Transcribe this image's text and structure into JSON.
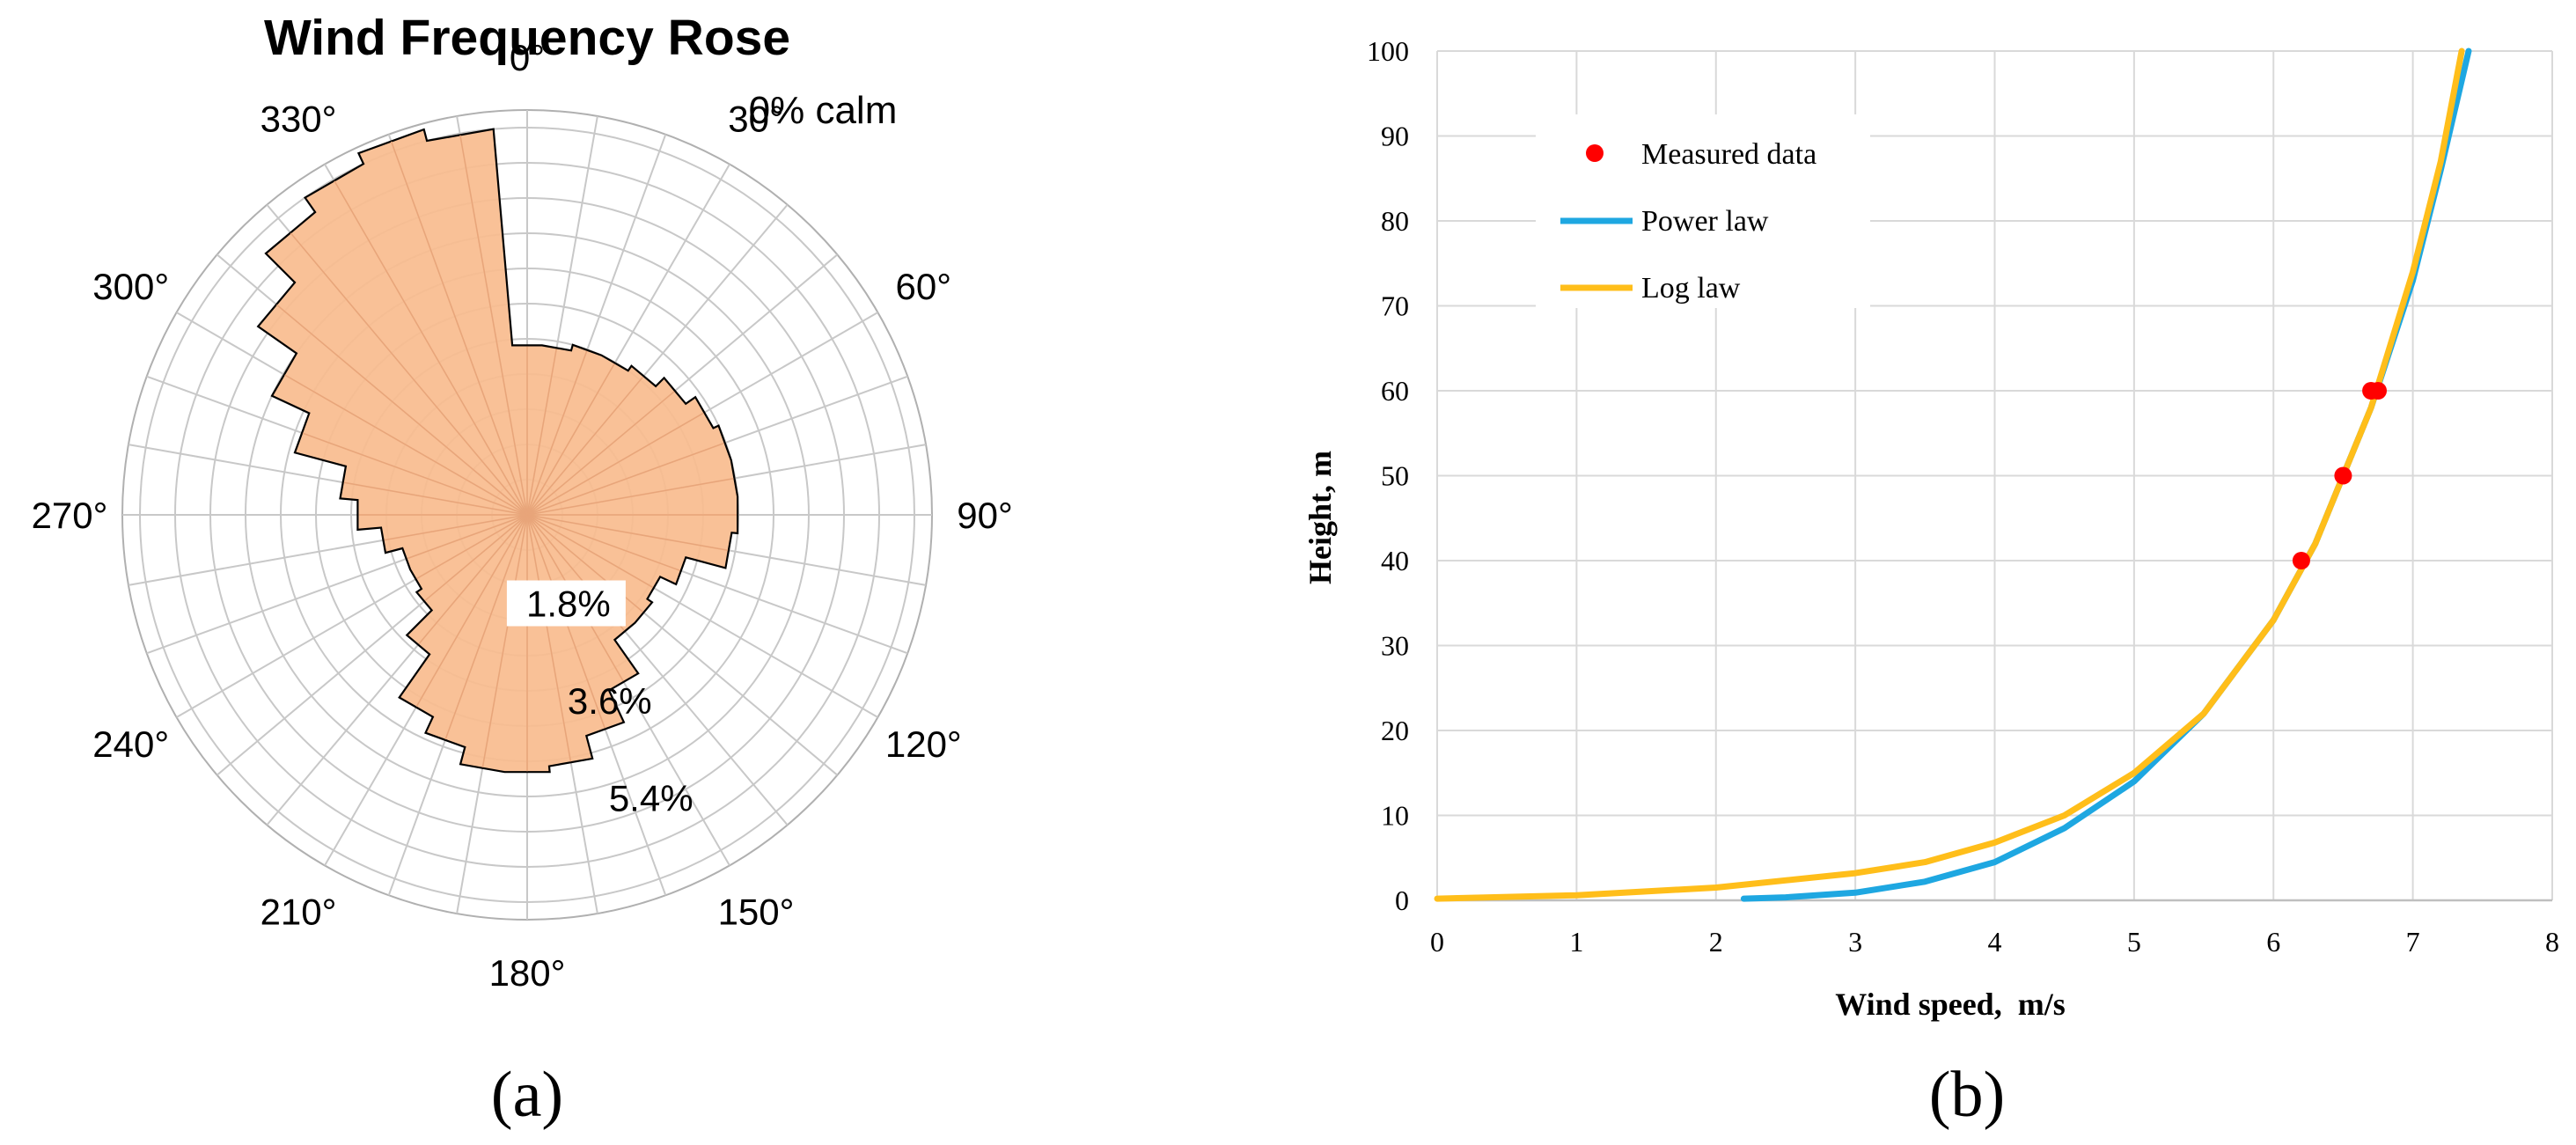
{
  "chart_data": [
    {
      "type": "polar-area",
      "title": "Wind Frequency Rose",
      "calm_label": "0% calm",
      "panel_label": "(a)",
      "angle_labels": [
        "0°",
        "30°",
        "60°",
        "90°",
        "120°",
        "150°",
        "180°",
        "210°",
        "240°",
        "270°",
        "300°",
        "330°"
      ],
      "radial_labels": [
        "1.8%",
        "3.6%",
        "5.4%"
      ],
      "radial_max_percent": 6.9,
      "colors": {
        "fill": "#f8bc8e",
        "outline": "#000000",
        "grid": "#c8c8c8"
      },
      "directions_deg": [
        0,
        10,
        20,
        30,
        40,
        50,
        60,
        70,
        80,
        90,
        100,
        110,
        120,
        130,
        140,
        150,
        160,
        170,
        180,
        190,
        200,
        210,
        220,
        230,
        240,
        250,
        260,
        270,
        280,
        290,
        300,
        310,
        320,
        330,
        340,
        350
      ],
      "frequencies_percent": [
        2.9,
        2.9,
        3.0,
        3.0,
        3.1,
        3.3,
        3.5,
        3.6,
        3.6,
        3.6,
        3.5,
        2.8,
        2.5,
        2.6,
        2.6,
        3.3,
        3.9,
        4.3,
        4.4,
        4.4,
        4.1,
        3.8,
        2.9,
        2.3,
        2.2,
        2.2,
        2.5,
        2.9,
        3.2,
        4.1,
        4.8,
        5.6,
        6.3,
        6.6,
        6.8,
        6.6
      ]
    },
    {
      "type": "line",
      "panel_label": "(b)",
      "xlabel": "Wind speed,  m/s",
      "ylabel": "Height, m",
      "xlim": [
        0,
        8
      ],
      "ylim": [
        0,
        100
      ],
      "xticks": [
        0,
        1,
        2,
        3,
        4,
        5,
        6,
        7,
        8
      ],
      "yticks": [
        0,
        10,
        20,
        30,
        40,
        50,
        60,
        70,
        80,
        90,
        100
      ],
      "colors": {
        "measured": "#ff0000",
        "power": "#1ea7e1",
        "log": "#ffbe1a",
        "grid": "#d9d9d9"
      },
      "legend": {
        "position": "top-left",
        "entries": [
          {
            "key": "measured",
            "label": "Measured data"
          },
          {
            "key": "power",
            "label": "Power law"
          },
          {
            "key": "log",
            "label": "Log law"
          }
        ]
      },
      "series": [
        {
          "name": "Measured data",
          "key": "measured",
          "style": "points",
          "points": [
            [
              6.2,
              40
            ],
            [
              6.5,
              50
            ],
            [
              6.7,
              60
            ],
            [
              6.75,
              60
            ]
          ]
        },
        {
          "name": "Power law",
          "key": "power",
          "style": "line",
          "points": [
            [
              2.2,
              0.2
            ],
            [
              2.5,
              0.35
            ],
            [
              3.0,
              0.9
            ],
            [
              3.5,
              2.2
            ],
            [
              4.0,
              4.5
            ],
            [
              4.5,
              8.5
            ],
            [
              5.0,
              14
            ],
            [
              5.5,
              22
            ],
            [
              6.0,
              33
            ],
            [
              6.3,
              42
            ],
            [
              6.5,
              50
            ],
            [
              6.7,
              58
            ],
            [
              7.0,
              73
            ],
            [
              7.2,
              86
            ],
            [
              7.4,
              100
            ]
          ]
        },
        {
          "name": "Log law",
          "key": "log",
          "style": "line",
          "points": [
            [
              0,
              0.2
            ],
            [
              1,
              0.6
            ],
            [
              2,
              1.5
            ],
            [
              3,
              3.2
            ],
            [
              3.5,
              4.5
            ],
            [
              4.0,
              6.8
            ],
            [
              4.5,
              10
            ],
            [
              5.0,
              15
            ],
            [
              5.5,
              22
            ],
            [
              6.0,
              33
            ],
            [
              6.3,
              42
            ],
            [
              6.5,
              50
            ],
            [
              6.7,
              58
            ],
            [
              7.0,
              74
            ],
            [
              7.2,
              87
            ],
            [
              7.35,
              100
            ]
          ]
        }
      ]
    }
  ]
}
